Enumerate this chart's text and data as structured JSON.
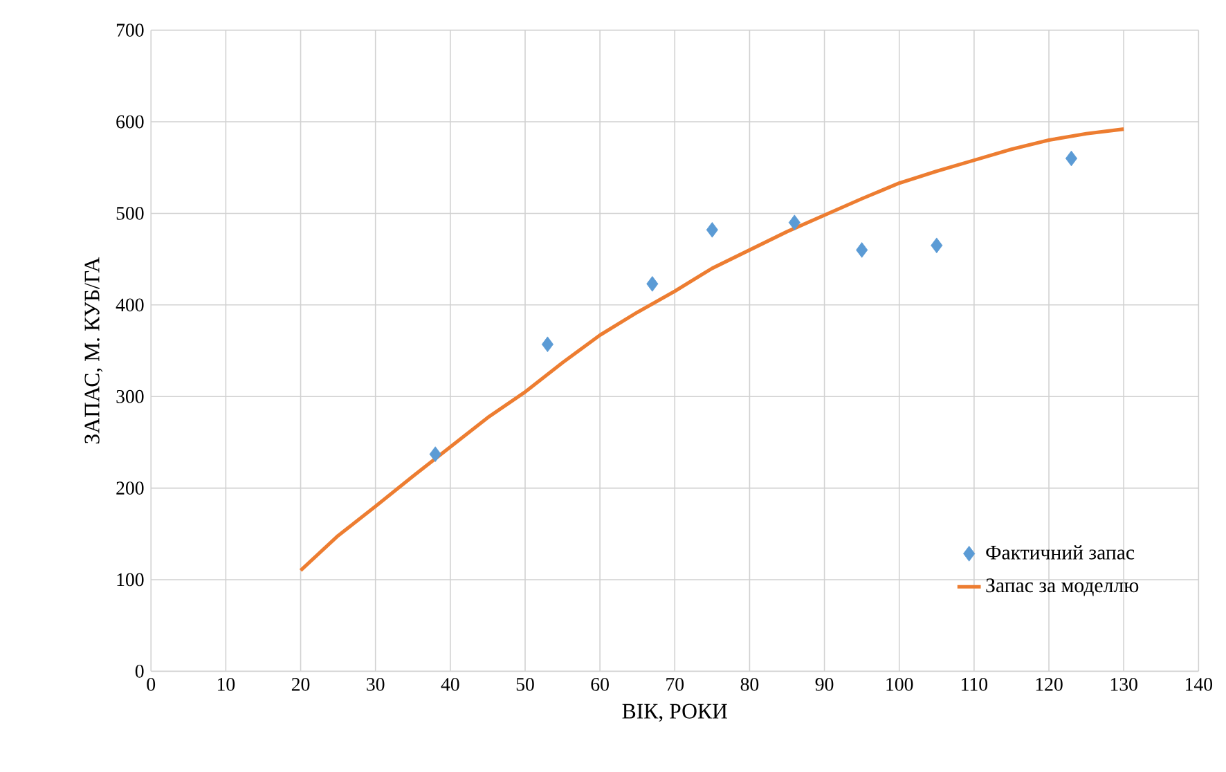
{
  "chart_data": {
    "type": "scatter",
    "xlabel": "ВІК, РОКИ",
    "ylabel": "ЗАПАС, М. КУБ/ГА",
    "xlim": [
      0,
      140
    ],
    "xticks": [
      0,
      10,
      20,
      30,
      40,
      50,
      60,
      70,
      80,
      90,
      100,
      110,
      120,
      130,
      140
    ],
    "ylim": [
      0,
      700
    ],
    "yticks": [
      0,
      100,
      200,
      300,
      400,
      500,
      600,
      700
    ],
    "grid": true,
    "legend": "bottom right",
    "series": [
      {
        "name": "Фактичний запас",
        "marker": "diamond",
        "color": "#5b9bd5",
        "x": [
          38,
          53,
          67,
          75,
          86,
          95,
          105,
          123
        ],
        "values": [
          237,
          357,
          423,
          482,
          490,
          460,
          465,
          560
        ]
      },
      {
        "name": "Запас за моделлю",
        "type": "line",
        "marker": "none",
        "color": "#ed7d31",
        "x": [
          20,
          25,
          30,
          35,
          40,
          45,
          50,
          55,
          60,
          65,
          70,
          75,
          80,
          85,
          90,
          95,
          100,
          105,
          110,
          115,
          120,
          125,
          130
        ],
        "values": [
          110,
          148,
          180,
          213,
          245,
          277,
          305,
          337,
          367,
          392,
          415,
          440,
          460,
          480,
          498,
          516,
          533,
          546,
          558,
          570,
          580,
          587,
          592
        ]
      }
    ]
  }
}
